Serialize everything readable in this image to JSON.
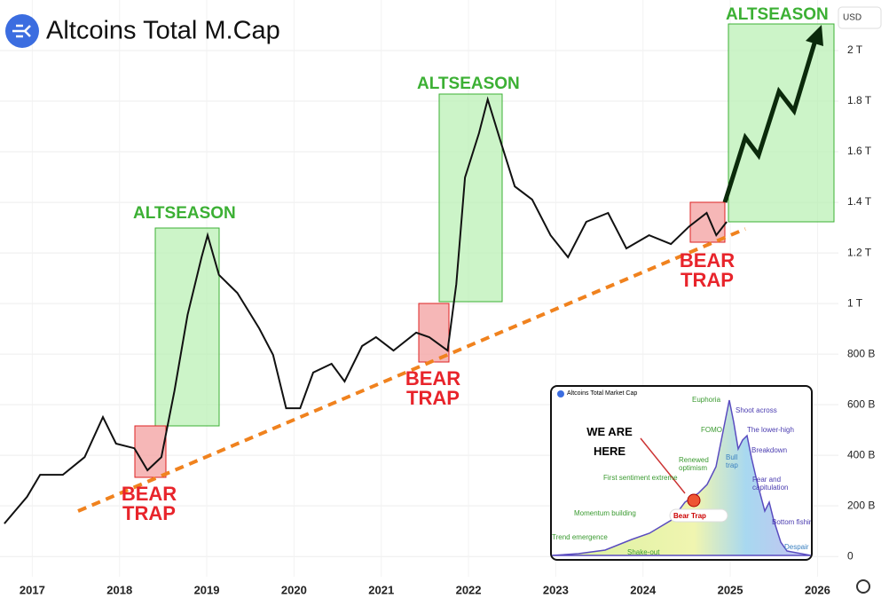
{
  "chart_data": {
    "type": "line",
    "title": "Altcoins Total M.Cap",
    "currency": "USD",
    "x": [
      2016.68,
      2016.94,
      2017.09,
      2017.35,
      2017.6,
      2017.81,
      2017.96,
      2018.17,
      2018.32,
      2018.48,
      2018.63,
      2018.78,
      2018.94,
      2019.01,
      2019.14,
      2019.35,
      2019.6,
      2019.76,
      2019.91,
      2020.07,
      2020.22,
      2020.43,
      2020.58,
      2020.78,
      2020.94,
      2021.14,
      2021.4,
      2021.55,
      2021.76,
      2021.86,
      2021.96,
      2022.12,
      2022.22,
      2022.37,
      2022.53,
      2022.73,
      2022.94,
      2023.14,
      2023.35,
      2023.6,
      2023.81,
      2024.07,
      2024.32,
      2024.53,
      2024.73,
      2024.84,
      2024.96
    ],
    "values": [
      130,
      236,
      323,
      323,
      393,
      551,
      446,
      428,
      341,
      393,
      656,
      955,
      1183,
      1270,
      1113,
      1042,
      902,
      797,
      586,
      586,
      727,
      762,
      692,
      832,
      867,
      814,
      885,
      867,
      814,
      1077,
      1498,
      1674,
      1807,
      1639,
      1463,
      1411,
      1270,
      1183,
      1323,
      1358,
      1218,
      1270,
      1235,
      1305,
      1358,
      1270,
      1323
    ],
    "color": "#111111",
    "xlim": [
      2016.63,
      2026.24
    ],
    "xticks": [
      2017,
      2018,
      2019,
      2020,
      2021,
      2022,
      2023,
      2024,
      2025,
      2026
    ],
    "ylim": [
      -80,
      2200
    ],
    "yticks": [
      0,
      {
        "value": 200,
        "label": "200 B"
      },
      {
        "value": 400,
        "label": "400 B"
      },
      {
        "value": 600,
        "label": "600 B"
      },
      {
        "value": 800,
        "label": "800 B"
      },
      {
        "value": 1000,
        "label": "1 T"
      },
      {
        "value": 1200,
        "label": "1.2 T"
      },
      {
        "value": 1400,
        "label": "1.4 T"
      },
      {
        "value": 1600,
        "label": "1.6 T"
      },
      {
        "value": 1800,
        "label": "1.8 T"
      },
      {
        "value": 2000,
        "label": "2 T"
      }
    ],
    "grid": true,
    "annotations": [
      "ALTSEASON",
      "ALTSEASON",
      "ALTSEASON",
      "BEAR TRAP",
      "BEAR TRAP",
      "BEAR TRAP"
    ],
    "inset": {
      "title": "Altcoins Total Market Cap",
      "pointer": "WE ARE HERE",
      "marker": "Bear Trap",
      "stages": [
        "Euphoria",
        "Shoot across",
        "FOMO",
        "The lower-high",
        "Bull trap",
        "Breakdown",
        "Renewed optimism",
        "Fear and capitulation",
        "First sentiment extreme",
        "Momentum building",
        "Bottom fishing",
        "Trend emergence",
        "Shake-out",
        "Despair"
      ]
    }
  }
}
